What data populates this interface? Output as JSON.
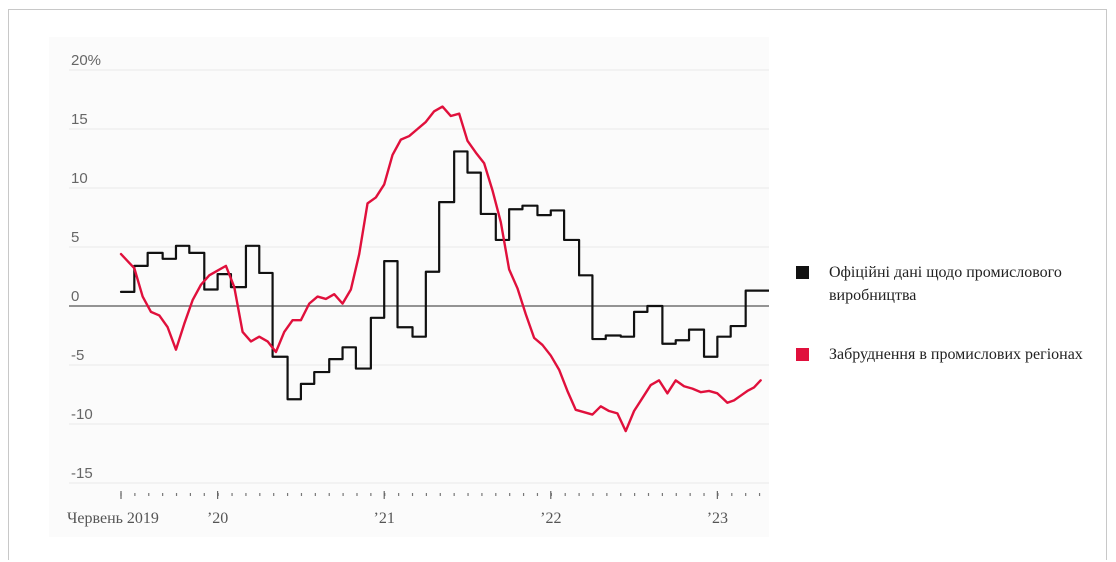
{
  "chart_data": {
    "type": "line",
    "title": "",
    "xlabel": "",
    "ylabel": "",
    "ylim": [
      -15,
      20
    ],
    "xlim": [
      2019.42,
      2023.28
    ],
    "yticks": [
      {
        "value": 20,
        "label": "20%"
      },
      {
        "value": 15,
        "label": "15"
      },
      {
        "value": 10,
        "label": "10"
      },
      {
        "value": 5,
        "label": "5"
      },
      {
        "value": 0,
        "label": "0"
      },
      {
        "value": -5,
        "label": "-5"
      },
      {
        "value": -10,
        "label": "-10"
      },
      {
        "value": -15,
        "label": "-15"
      }
    ],
    "xticks": [
      {
        "value": 2019.42,
        "label": "Червень 2019"
      },
      {
        "value": 2020.0,
        "label": "’20"
      },
      {
        "value": 2021.0,
        "label": "’21"
      },
      {
        "value": 2022.0,
        "label": "’22"
      },
      {
        "value": 2023.0,
        "label": "’23"
      }
    ],
    "grid": true,
    "legend_position": "right",
    "series": [
      {
        "name": "Офіційні дані щодо промислового виробництва",
        "color": "#111111",
        "step": true,
        "x": [
          2019.42,
          2019.5,
          2019.58,
          2019.67,
          2019.75,
          2019.83,
          2019.92,
          2020.0,
          2020.08,
          2020.17,
          2020.25,
          2020.33,
          2020.42,
          2020.5,
          2020.58,
          2020.67,
          2020.75,
          2020.83,
          2020.92,
          2021.0,
          2021.08,
          2021.17,
          2021.25,
          2021.33,
          2021.42,
          2021.5,
          2021.58,
          2021.67,
          2021.75,
          2021.83,
          2021.92,
          2022.0,
          2022.08,
          2022.17,
          2022.25,
          2022.33,
          2022.42,
          2022.5,
          2022.58,
          2022.67,
          2022.75,
          2022.83,
          2022.92,
          2023.0,
          2023.08,
          2023.17,
          2023.25
        ],
        "y": [
          1.2,
          3.4,
          4.5,
          4.0,
          5.1,
          4.5,
          1.4,
          2.7,
          1.6,
          5.1,
          2.8,
          -4.3,
          -7.9,
          -6.6,
          -5.6,
          -4.5,
          -3.5,
          -5.3,
          -1.0,
          3.8,
          -1.8,
          -2.6,
          2.9,
          8.8,
          13.1,
          11.3,
          7.8,
          5.6,
          8.2,
          8.5,
          7.7,
          8.1,
          5.6,
          2.6,
          -2.8,
          -2.5,
          -2.6,
          -0.5,
          0.0,
          -3.2,
          -2.9,
          -2.0,
          -4.3,
          -2.6,
          -1.7,
          1.3,
          1.3
        ]
      },
      {
        "name": "Забруднення в промислових регіонах",
        "color": "#e0103c",
        "step": false,
        "x": [
          2019.42,
          2019.5,
          2019.55,
          2019.6,
          2019.65,
          2019.7,
          2019.75,
          2019.8,
          2019.85,
          2019.9,
          2019.95,
          2020.0,
          2020.05,
          2020.1,
          2020.15,
          2020.2,
          2020.25,
          2020.3,
          2020.35,
          2020.4,
          2020.45,
          2020.5,
          2020.55,
          2020.6,
          2020.65,
          2020.7,
          2020.75,
          2020.8,
          2020.85,
          2020.9,
          2020.95,
          2021.0,
          2021.05,
          2021.1,
          2021.15,
          2021.2,
          2021.25,
          2021.3,
          2021.35,
          2021.4,
          2021.45,
          2021.5,
          2021.55,
          2021.6,
          2021.65,
          2021.7,
          2021.75,
          2021.8,
          2021.85,
          2021.9,
          2021.95,
          2022.0,
          2022.05,
          2022.1,
          2022.15,
          2022.2,
          2022.25,
          2022.3,
          2022.35,
          2022.4,
          2022.45,
          2022.5,
          2022.55,
          2022.6,
          2022.65,
          2022.7,
          2022.75,
          2022.8,
          2022.85,
          2022.9,
          2022.95,
          2023.0,
          2023.03,
          2023.06,
          2023.1,
          2023.14,
          2023.18,
          2023.22,
          2023.26
        ],
        "y": [
          4.4,
          3.2,
          0.8,
          -0.5,
          -0.8,
          -1.8,
          -3.7,
          -1.5,
          0.5,
          1.8,
          2.6,
          3.0,
          3.4,
          1.6,
          -2.2,
          -3.0,
          -2.6,
          -3.0,
          -3.9,
          -2.2,
          -1.2,
          -1.2,
          0.2,
          0.8,
          0.6,
          1.0,
          0.2,
          1.4,
          4.4,
          8.7,
          9.2,
          10.3,
          12.8,
          14.1,
          14.4,
          15.0,
          15.6,
          16.5,
          16.9,
          16.1,
          16.3,
          14.0,
          13.0,
          12.1,
          9.8,
          7.1,
          3.1,
          1.5,
          -0.7,
          -2.7,
          -3.3,
          -4.2,
          -5.4,
          -7.2,
          -8.8,
          -9.0,
          -9.2,
          -8.5,
          -8.9,
          -9.1,
          -10.6,
          -8.9,
          -7.8,
          -6.7,
          -6.3,
          -7.4,
          -6.3,
          -6.8,
          -7.0,
          -7.3,
          -7.2,
          -7.4,
          -7.8,
          -8.2,
          -8.0,
          -7.6,
          -7.2,
          -6.9,
          -6.3
        ]
      }
    ]
  }
}
